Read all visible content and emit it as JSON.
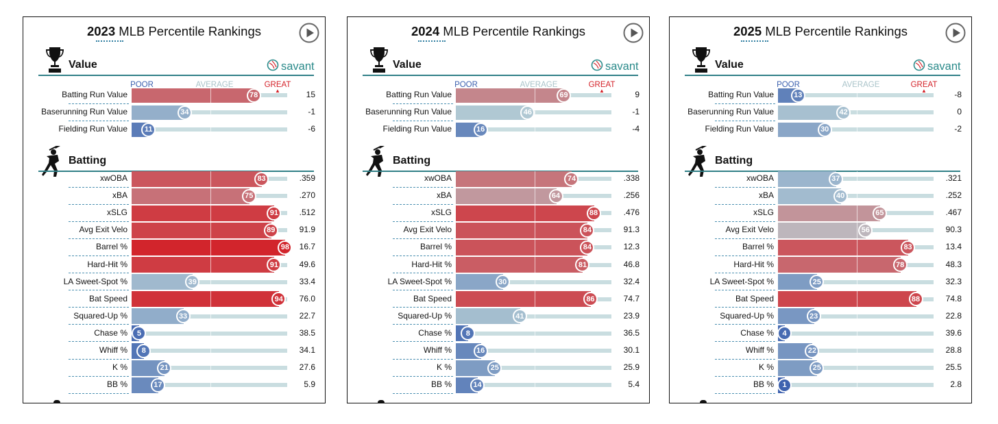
{
  "panels": [
    {
      "title_year": "2023",
      "title_rest": " MLB Percentile Rankings",
      "brand": "savant",
      "scale": {
        "poor": "POOR",
        "average": "AVERAGE",
        "great": "GREAT"
      },
      "sections": [
        {
          "name": "Value",
          "icon": "trophy-icon",
          "rows": [
            {
              "label": "Batting Run Value",
              "pct": 78,
              "value": "15"
            },
            {
              "label": "Baserunning Run Value",
              "pct": 34,
              "value": "-1"
            },
            {
              "label": "Fielding Run Value",
              "pct": 11,
              "value": "-6"
            }
          ]
        },
        {
          "name": "Batting",
          "icon": "batter-icon",
          "rows": [
            {
              "label": "xwOBA",
              "pct": 83,
              "value": ".359"
            },
            {
              "label": "xBA",
              "pct": 75,
              "value": ".270"
            },
            {
              "label": "xSLG",
              "pct": 91,
              "value": ".512"
            },
            {
              "label": "Avg Exit Velo",
              "pct": 89,
              "value": "91.9"
            },
            {
              "label": "Barrel %",
              "pct": 98,
              "value": "16.7"
            },
            {
              "label": "Hard-Hit %",
              "pct": 91,
              "value": "49.6"
            },
            {
              "label": "LA Sweet-Spot %",
              "pct": 39,
              "value": "33.4"
            },
            {
              "label": "Bat Speed",
              "pct": 94,
              "value": "76.0"
            },
            {
              "label": "Squared-Up %",
              "pct": 33,
              "value": "22.7"
            },
            {
              "label": "Chase %",
              "pct": 5,
              "value": "38.5"
            },
            {
              "label": "Whiff %",
              "pct": 8,
              "value": "34.1"
            },
            {
              "label": "K %",
              "pct": 21,
              "value": "27.6"
            },
            {
              "label": "BB %",
              "pct": 17,
              "value": "5.9"
            }
          ]
        }
      ]
    },
    {
      "title_year": "2024",
      "title_rest": " MLB Percentile Rankings",
      "brand": "savant",
      "scale": {
        "poor": "POOR",
        "average": "AVERAGE",
        "great": "GREAT"
      },
      "sections": [
        {
          "name": "Value",
          "icon": "trophy-icon",
          "rows": [
            {
              "label": "Batting Run Value",
              "pct": 69,
              "value": "9"
            },
            {
              "label": "Baserunning Run Value",
              "pct": 46,
              "value": "-1"
            },
            {
              "label": "Fielding Run Value",
              "pct": 16,
              "value": "-4"
            }
          ]
        },
        {
          "name": "Batting",
          "icon": "batter-icon",
          "rows": [
            {
              "label": "xwOBA",
              "pct": 74,
              "value": ".338"
            },
            {
              "label": "xBA",
              "pct": 64,
              "value": ".256"
            },
            {
              "label": "xSLG",
              "pct": 88,
              "value": ".476"
            },
            {
              "label": "Avg Exit Velo",
              "pct": 84,
              "value": "91.3"
            },
            {
              "label": "Barrel %",
              "pct": 84,
              "value": "12.3"
            },
            {
              "label": "Hard-Hit %",
              "pct": 81,
              "value": "46.8"
            },
            {
              "label": "LA Sweet-Spot %",
              "pct": 30,
              "value": "32.4"
            },
            {
              "label": "Bat Speed",
              "pct": 86,
              "value": "74.7"
            },
            {
              "label": "Squared-Up %",
              "pct": 41,
              "value": "23.9"
            },
            {
              "label": "Chase %",
              "pct": 8,
              "value": "36.5"
            },
            {
              "label": "Whiff %",
              "pct": 16,
              "value": "30.1"
            },
            {
              "label": "K %",
              "pct": 25,
              "value": "25.9"
            },
            {
              "label": "BB %",
              "pct": 14,
              "value": "5.4"
            }
          ]
        }
      ]
    },
    {
      "title_year": "2025",
      "title_rest": " MLB Percentile Rankings",
      "brand": "savant",
      "scale": {
        "poor": "POOR",
        "average": "AVERAGE",
        "great": "GREAT"
      },
      "sections": [
        {
          "name": "Value",
          "icon": "trophy-icon",
          "rows": [
            {
              "label": "Batting Run Value",
              "pct": 13,
              "value": "-8"
            },
            {
              "label": "Baserunning Run Value",
              "pct": 42,
              "value": "0"
            },
            {
              "label": "Fielding Run Value",
              "pct": 30,
              "value": "-2"
            }
          ]
        },
        {
          "name": "Batting",
          "icon": "batter-icon",
          "rows": [
            {
              "label": "xwOBA",
              "pct": 37,
              "value": ".321"
            },
            {
              "label": "xBA",
              "pct": 40,
              "value": ".252"
            },
            {
              "label": "xSLG",
              "pct": 65,
              "value": ".467"
            },
            {
              "label": "Avg Exit Velo",
              "pct": 56,
              "value": "90.3"
            },
            {
              "label": "Barrel %",
              "pct": 83,
              "value": "13.4"
            },
            {
              "label": "Hard-Hit %",
              "pct": 78,
              "value": "48.3"
            },
            {
              "label": "LA Sweet-Spot %",
              "pct": 25,
              "value": "32.3"
            },
            {
              "label": "Bat Speed",
              "pct": 88,
              "value": "74.8"
            },
            {
              "label": "Squared-Up %",
              "pct": 23,
              "value": "22.8"
            },
            {
              "label": "Chase %",
              "pct": 4,
              "value": "39.6"
            },
            {
              "label": "Whiff %",
              "pct": 22,
              "value": "28.8"
            },
            {
              "label": "K %",
              "pct": 25,
              "value": "25.5"
            },
            {
              "label": "BB %",
              "pct": 1,
              "value": "2.8"
            }
          ]
        }
      ]
    }
  ],
  "chart_data": [
    {
      "type": "bar",
      "title": "2023 MLB Percentile Rankings",
      "xlim": [
        0,
        100
      ],
      "categories": [
        "Batting Run Value",
        "Baserunning Run Value",
        "Fielding Run Value",
        "xwOBA",
        "xBA",
        "xSLG",
        "Avg Exit Velo",
        "Barrel %",
        "Hard-Hit %",
        "LA Sweet-Spot %",
        "Bat Speed",
        "Squared-Up %",
        "Chase %",
        "Whiff %",
        "K %",
        "BB %"
      ],
      "percentiles": [
        78,
        34,
        11,
        83,
        75,
        91,
        89,
        98,
        91,
        39,
        94,
        33,
        5,
        8,
        21,
        17
      ],
      "stat_values": [
        "15",
        "-1",
        "-6",
        ".359",
        ".270",
        ".512",
        "91.9",
        "16.7",
        "49.6",
        "33.4",
        "76.0",
        "22.7",
        "38.5",
        "34.1",
        "27.6",
        "5.9"
      ]
    },
    {
      "type": "bar",
      "title": "2024 MLB Percentile Rankings",
      "xlim": [
        0,
        100
      ],
      "categories": [
        "Batting Run Value",
        "Baserunning Run Value",
        "Fielding Run Value",
        "xwOBA",
        "xBA",
        "xSLG",
        "Avg Exit Velo",
        "Barrel %",
        "Hard-Hit %",
        "LA Sweet-Spot %",
        "Bat Speed",
        "Squared-Up %",
        "Chase %",
        "Whiff %",
        "K %",
        "BB %"
      ],
      "percentiles": [
        69,
        46,
        16,
        74,
        64,
        88,
        84,
        84,
        81,
        30,
        86,
        41,
        8,
        16,
        25,
        14
      ],
      "stat_values": [
        "9",
        "-1",
        "-4",
        ".338",
        ".256",
        ".476",
        "91.3",
        "12.3",
        "46.8",
        "32.4",
        "74.7",
        "23.9",
        "36.5",
        "30.1",
        "25.9",
        "5.4"
      ]
    },
    {
      "type": "bar",
      "title": "2025 MLB Percentile Rankings",
      "xlim": [
        0,
        100
      ],
      "categories": [
        "Batting Run Value",
        "Baserunning Run Value",
        "Fielding Run Value",
        "xwOBA",
        "xBA",
        "xSLG",
        "Avg Exit Velo",
        "Barrel %",
        "Hard-Hit %",
        "LA Sweet-Spot %",
        "Bat Speed",
        "Squared-Up %",
        "Chase %",
        "Whiff %",
        "K %",
        "BB %"
      ],
      "percentiles": [
        13,
        42,
        30,
        37,
        40,
        65,
        56,
        83,
        78,
        25,
        88,
        23,
        4,
        22,
        25,
        1
      ],
      "stat_values": [
        "-8",
        "0",
        "-2",
        ".321",
        ".252",
        ".467",
        "90.3",
        "13.4",
        "48.3",
        "32.3",
        "74.8",
        "22.8",
        "39.6",
        "28.8",
        "25.5",
        "2.8"
      ]
    }
  ],
  "colors": {
    "poor": "#3a5fae",
    "average": "#b9d0d6",
    "great": "#d31f26",
    "rule": "#2f7f86",
    "track": "#c9dde0",
    "brand": "#2a8a8a"
  }
}
